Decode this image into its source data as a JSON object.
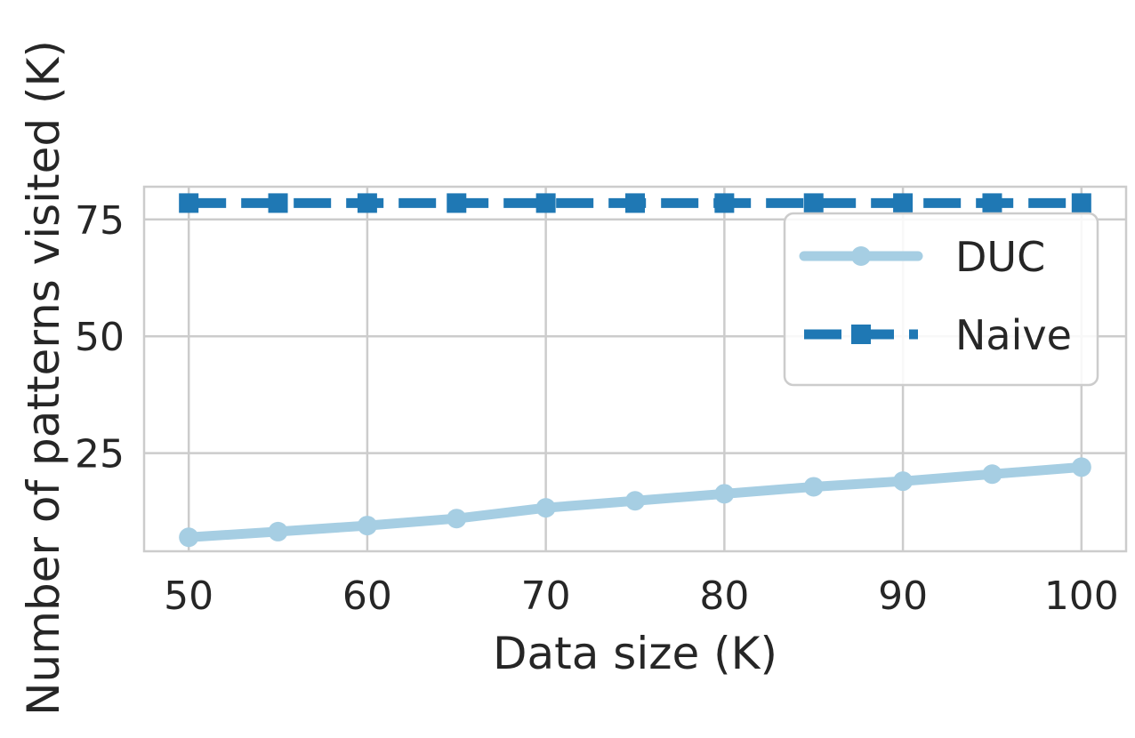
{
  "chart_data": {
    "type": "line",
    "xlabel": "Data size (K)",
    "ylabel": "Number of patterns visited (K)",
    "x": [
      50,
      55,
      60,
      65,
      70,
      75,
      80,
      85,
      90,
      95,
      100
    ],
    "xticks": [
      50,
      60,
      70,
      80,
      90,
      100
    ],
    "yticks": [
      25,
      50,
      75
    ],
    "xlim": [
      47.5,
      102.5
    ],
    "ylim": [
      4,
      82
    ],
    "grid": true,
    "legend_position": "top-right",
    "series": [
      {
        "name": "DUC",
        "values": [
          7.0,
          8.2,
          9.5,
          11.0,
          13.3,
          14.8,
          16.3,
          17.8,
          19.0,
          20.5,
          22.0
        ],
        "color": "#a6cee3",
        "marker": "circle",
        "line_style": "solid"
      },
      {
        "name": "Naive",
        "values": [
          78.5,
          78.5,
          78.5,
          78.5,
          78.5,
          78.5,
          78.5,
          78.5,
          78.5,
          78.5,
          78.5
        ],
        "color": "#1f78b4",
        "marker": "square",
        "line_style": "dashed"
      }
    ]
  }
}
